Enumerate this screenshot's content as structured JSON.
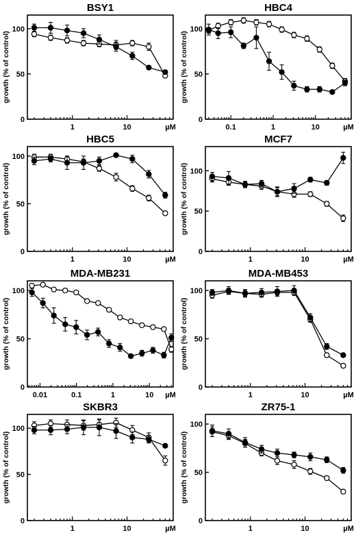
{
  "ylabel": "growth (% of control)",
  "unit_label": "µM",
  "chart_data": [
    {
      "type": "line",
      "title": "BSY1",
      "ylabel": "growth (% of control)",
      "x_unit": "µM",
      "xscale": "log",
      "xlim": [
        0.15,
        70
      ],
      "ylim": [
        0,
        115
      ],
      "yticks": [
        0,
        50,
        100
      ],
      "xticks": [
        1,
        10
      ],
      "xticklabels": [
        "1",
        "10"
      ],
      "series": [
        {
          "marker": "filled",
          "x": [
            0.2,
            0.4,
            0.8,
            1.6,
            3.1,
            6.3,
            12.5,
            25,
            50
          ],
          "y": [
            101,
            101,
            98,
            95,
            88,
            80,
            70,
            57,
            52
          ],
          "err": [
            4,
            6,
            6,
            5,
            5,
            5,
            4,
            2,
            2
          ]
        },
        {
          "marker": "open",
          "x": [
            0.2,
            0.4,
            0.8,
            1.6,
            3.1,
            6.3,
            12.5,
            25,
            50
          ],
          "y": [
            94,
            90,
            87,
            84,
            83,
            82,
            84,
            80,
            48
          ],
          "err": [
            3,
            3,
            3,
            3,
            3,
            5,
            3,
            4,
            2
          ]
        }
      ]
    },
    {
      "type": "line",
      "title": "HBC4",
      "ylabel": "growth (% of control)",
      "x_unit": "µM",
      "xscale": "log",
      "xlim": [
        0.025,
        70
      ],
      "ylim": [
        0,
        115
      ],
      "yticks": [
        0,
        50,
        100
      ],
      "xticks": [
        0.1,
        1,
        10
      ],
      "xticklabels": [
        "0.1",
        "1",
        "10"
      ],
      "series": [
        {
          "marker": "filled",
          "x": [
            0.03,
            0.05,
            0.1,
            0.2,
            0.4,
            0.8,
            1.6,
            3.1,
            6.3,
            12.5,
            25,
            50
          ],
          "y": [
            99,
            95,
            96,
            81,
            90,
            64,
            52,
            37,
            33,
            33,
            30,
            40
          ],
          "err": [
            6,
            6,
            6,
            3,
            12,
            10,
            8,
            5,
            3,
            3,
            2,
            3
          ]
        },
        {
          "marker": "open",
          "x": [
            0.03,
            0.05,
            0.1,
            0.2,
            0.4,
            0.8,
            1.6,
            3.1,
            6.3,
            12.5,
            25,
            50
          ],
          "y": [
            98,
            103,
            107,
            109,
            107,
            105,
            99,
            93,
            89,
            77,
            59,
            42
          ],
          "err": [
            3,
            3,
            3,
            3,
            3,
            3,
            3,
            3,
            3,
            3,
            3,
            3
          ]
        }
      ]
    },
    {
      "type": "line",
      "title": "HBC5",
      "ylabel": "growth (% of control)",
      "x_unit": "µM",
      "xscale": "log",
      "xlim": [
        0.15,
        70
      ],
      "ylim": [
        0,
        110
      ],
      "yticks": [
        0,
        50,
        100
      ],
      "xticks": [
        1,
        10
      ],
      "xticklabels": [
        "1",
        "10"
      ],
      "series": [
        {
          "marker": "filled",
          "x": [
            0.2,
            0.4,
            0.8,
            1.6,
            3.1,
            6.3,
            12.5,
            25,
            50
          ],
          "y": [
            95,
            97,
            93,
            93,
            95,
            101,
            97,
            81,
            59
          ],
          "err": [
            4,
            3,
            7,
            7,
            4,
            2,
            4,
            4,
            3
          ]
        },
        {
          "marker": "open",
          "x": [
            0.2,
            0.4,
            0.8,
            1.6,
            3.1,
            6.3,
            12.5,
            25,
            50
          ],
          "y": [
            99,
            99,
            97,
            94,
            87,
            78,
            66,
            56,
            40
          ],
          "err": [
            3,
            3,
            3,
            3,
            3,
            4,
            3,
            3,
            2
          ]
        }
      ]
    },
    {
      "type": "line",
      "title": "MCF7",
      "ylabel": "growth (% of control)",
      "x_unit": "µM",
      "xscale": "log",
      "xlim": [
        0.15,
        70
      ],
      "ylim": [
        0,
        130
      ],
      "yticks": [
        0,
        50,
        100
      ],
      "xticks": [
        1,
        10
      ],
      "xticklabels": [
        "1",
        "10"
      ],
      "series": [
        {
          "marker": "filled",
          "x": [
            0.2,
            0.4,
            0.8,
            1.6,
            3.1,
            6.3,
            12.5,
            25,
            50
          ],
          "y": [
            93,
            91,
            83,
            84,
            74,
            78,
            89,
            85,
            116
          ],
          "err": [
            5,
            8,
            4,
            4,
            6,
            6,
            3,
            3,
            7
          ]
        },
        {
          "marker": "open",
          "x": [
            0.2,
            0.4,
            0.8,
            1.6,
            3.1,
            6.3,
            12.5,
            25,
            50
          ],
          "y": [
            90,
            86,
            83,
            81,
            74,
            71,
            71,
            59,
            41
          ],
          "err": [
            4,
            4,
            3,
            4,
            5,
            4,
            3,
            3,
            4
          ]
        }
      ]
    },
    {
      "type": "line",
      "title": "MDA-MB231",
      "ylabel": "growth (% of control)",
      "x_unit": "µM",
      "xscale": "log",
      "xlim": [
        0.0045,
        45
      ],
      "ylim": [
        0,
        110
      ],
      "yticks": [
        0,
        50,
        100
      ],
      "xticks": [
        0.01,
        0.1,
        1,
        10
      ],
      "xticklabels": [
        "0.01",
        "0.1",
        "1",
        "10"
      ],
      "series": [
        {
          "marker": "filled",
          "x": [
            0.006,
            0.012,
            0.024,
            0.049,
            0.098,
            0.195,
            0.39,
            0.78,
            1.56,
            3.1,
            6.25,
            12.5,
            25,
            40
          ],
          "y": [
            98,
            87,
            74,
            65,
            62,
            54,
            57,
            45,
            41,
            32,
            35,
            38,
            33,
            51
          ],
          "err": [
            4,
            5,
            8,
            7,
            7,
            5,
            4,
            4,
            4,
            2,
            3,
            3,
            3,
            4
          ]
        },
        {
          "marker": "open",
          "x": [
            0.006,
            0.012,
            0.024,
            0.049,
            0.098,
            0.195,
            0.39,
            0.78,
            1.56,
            3.1,
            6.25,
            12.5,
            25,
            40
          ],
          "y": [
            105,
            106,
            101,
            100,
            98,
            89,
            87,
            80,
            72,
            68,
            64,
            62,
            60,
            39
          ],
          "err": [
            2,
            2,
            2,
            2,
            2,
            2,
            2,
            2,
            2,
            2,
            2,
            2,
            2,
            3
          ]
        }
      ]
    },
    {
      "type": "line",
      "title": "MDA-MB453",
      "ylabel": "growth (% of control)",
      "x_unit": "µM",
      "xscale": "log",
      "xlim": [
        0.15,
        70
      ],
      "ylim": [
        0,
        110
      ],
      "yticks": [
        0,
        50,
        100
      ],
      "xticks": [
        1,
        10
      ],
      "xticklabels": [
        "1",
        "10"
      ],
      "series": [
        {
          "marker": "filled",
          "x": [
            0.2,
            0.4,
            0.8,
            1.6,
            3.1,
            6.3,
            12.5,
            25,
            50
          ],
          "y": [
            98,
            100,
            97,
            98,
            99,
            100,
            72,
            42,
            33
          ],
          "err": [
            3,
            4,
            4,
            4,
            5,
            5,
            4,
            3,
            2
          ]
        },
        {
          "marker": "open",
          "x": [
            0.2,
            0.4,
            0.8,
            1.6,
            3.1,
            6.3,
            12.5,
            25,
            50
          ],
          "y": [
            95,
            99,
            97,
            96,
            98,
            98,
            70,
            33,
            22
          ],
          "err": [
            3,
            3,
            3,
            3,
            3,
            3,
            3,
            2,
            2
          ]
        }
      ]
    },
    {
      "type": "line",
      "title": "SKBR3",
      "ylabel": "growth (% of control)",
      "x_unit": "µM",
      "xscale": "log",
      "xlim": [
        0.15,
        70
      ],
      "ylim": [
        0,
        115
      ],
      "yticks": [
        0,
        50,
        100
      ],
      "xticks": [
        1,
        10
      ],
      "xticklabels": [
        "1",
        "10"
      ],
      "series": [
        {
          "marker": "filled",
          "x": [
            0.2,
            0.4,
            0.8,
            1.6,
            3.1,
            6.3,
            12.5,
            25,
            50
          ],
          "y": [
            98,
            98,
            99,
            101,
            101,
            97,
            90,
            88,
            81
          ],
          "err": [
            4,
            5,
            5,
            8,
            9,
            8,
            6,
            4,
            2
          ]
        },
        {
          "marker": "open",
          "x": [
            0.2,
            0.4,
            0.8,
            1.6,
            3.1,
            6.3,
            12.5,
            25,
            50
          ],
          "y": [
            103,
            105,
            104,
            103,
            104,
            106,
            98,
            90,
            65
          ],
          "err": [
            4,
            4,
            5,
            5,
            5,
            5,
            5,
            5,
            5
          ]
        }
      ]
    },
    {
      "type": "line",
      "title": "ZR75-1",
      "ylabel": "growth (% of control)",
      "x_unit": "µM",
      "xscale": "log",
      "xlim": [
        0.15,
        70
      ],
      "ylim": [
        0,
        110
      ],
      "yticks": [
        0,
        50,
        100
      ],
      "xticks": [
        1,
        10
      ],
      "xticklabels": [
        "1",
        "10"
      ],
      "series": [
        {
          "marker": "filled",
          "x": [
            0.2,
            0.4,
            0.8,
            1.6,
            3.1,
            6.3,
            12.5,
            25,
            50
          ],
          "y": [
            93,
            90,
            81,
            74,
            70,
            68,
            66,
            63,
            52
          ],
          "err": [
            6,
            5,
            5,
            4,
            4,
            3,
            4,
            3,
            3
          ]
        },
        {
          "marker": "open",
          "x": [
            0.2,
            0.4,
            0.8,
            1.6,
            3.1,
            6.3,
            12.5,
            25,
            50
          ],
          "y": [
            92,
            88,
            80,
            70,
            62,
            58,
            51,
            44,
            30
          ],
          "err": [
            5,
            4,
            4,
            3,
            4,
            4,
            3,
            2,
            2
          ]
        }
      ]
    }
  ]
}
